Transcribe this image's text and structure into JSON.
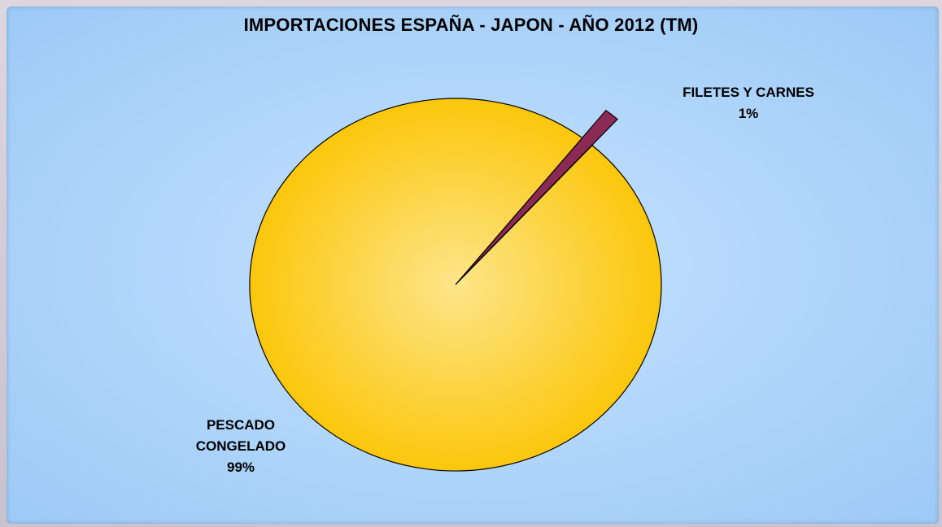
{
  "chart_data": {
    "type": "pie",
    "title": "IMPORTACIONES ESPAÑA - JAPON - AÑO 2012 (TM)",
    "slices": [
      {
        "label_lines": [
          "FILETES Y CARNES"
        ],
        "percent_label": "1%",
        "value": 1,
        "color": "#8b2a54",
        "exploded": true
      },
      {
        "label_lines": [
          "PESCADO",
          "CONGELADO"
        ],
        "percent_label": "99%",
        "value": 99,
        "color": "#fcc80a",
        "exploded": false
      }
    ],
    "colors": {
      "pie_center": "#fde58a",
      "pie_edge": "#fbc400",
      "background_center": "#c4e2ff",
      "background_edge": "#9ccaf6"
    }
  }
}
